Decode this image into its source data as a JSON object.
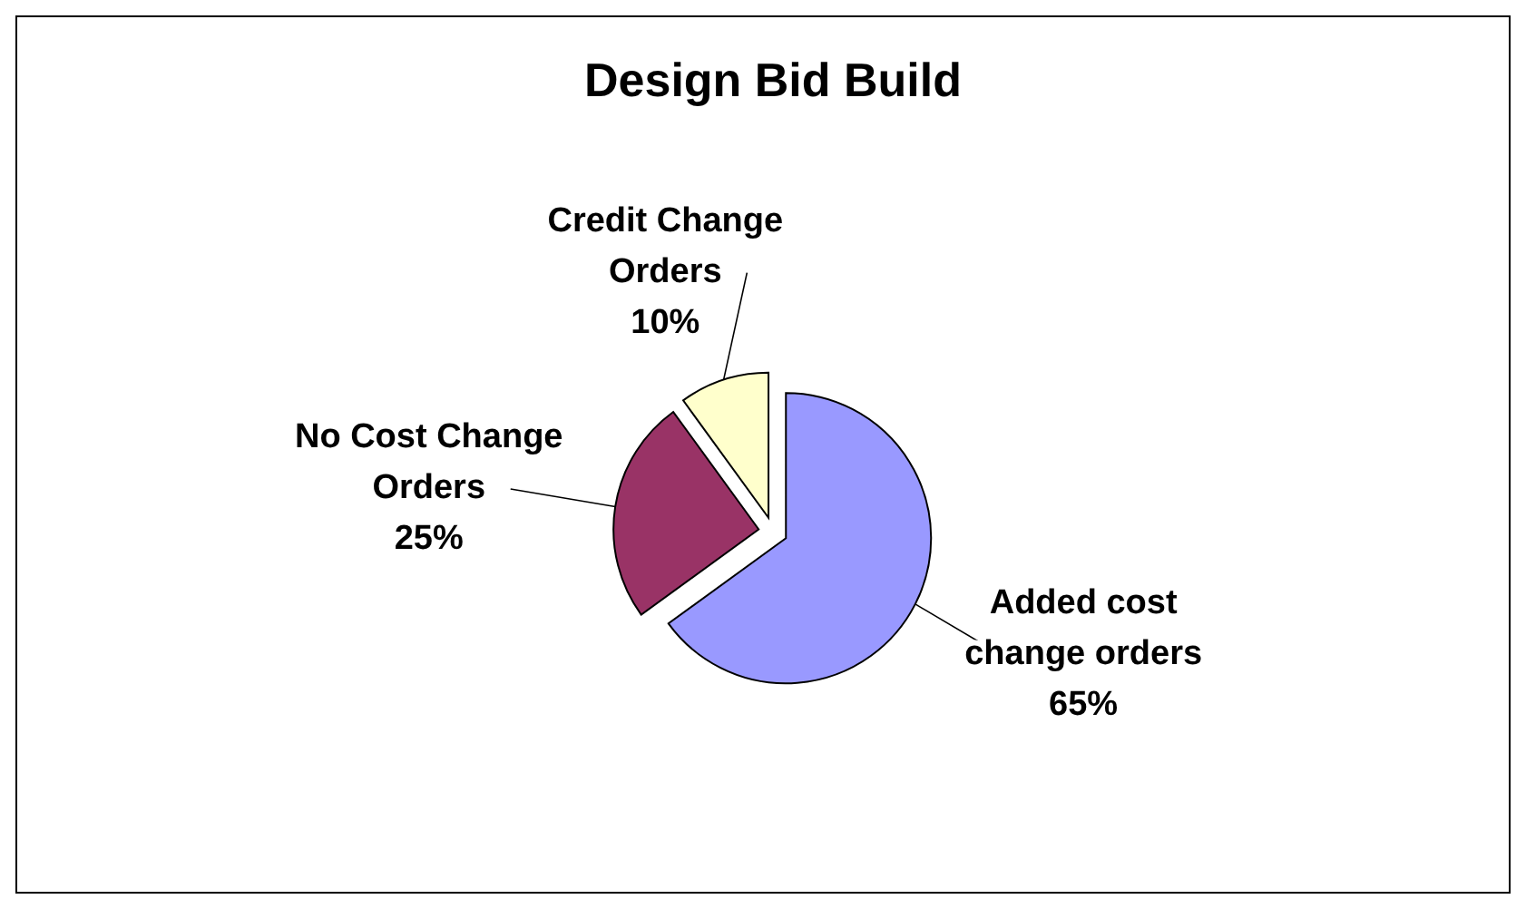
{
  "chart_data": {
    "type": "pie",
    "title": "Design Bid Build",
    "categories": [
      "Added cost change orders",
      "No Cost Change Orders",
      "Credit Change Orders"
    ],
    "values": [
      65,
      25,
      10
    ],
    "value_labels": [
      "65%",
      "25%",
      "10%"
    ],
    "colors": [
      "#9999ff",
      "#993366",
      "#ffffcc"
    ]
  }
}
